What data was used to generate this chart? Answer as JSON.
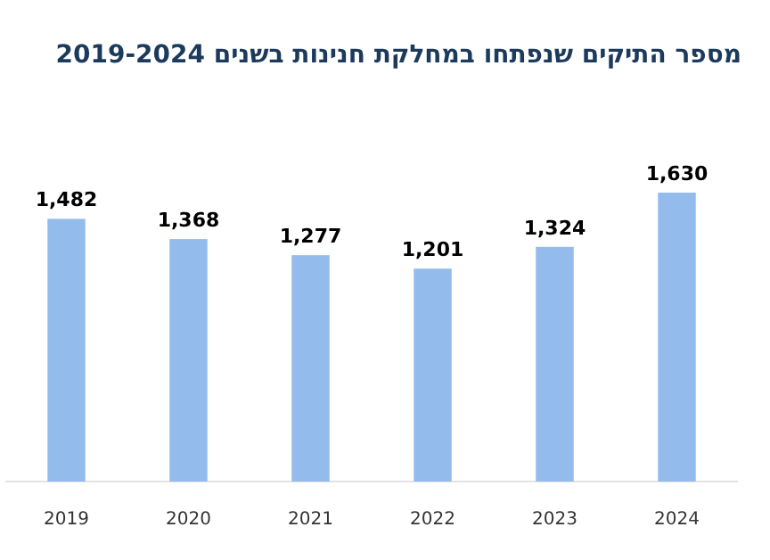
{
  "chart_data": {
    "type": "bar",
    "title": "מספר התיקים שנפתחו במחלקת חנינות בשנים 2019-2024",
    "categories": [
      "2019",
      "2020",
      "2021",
      "2022",
      "2023",
      "2024"
    ],
    "values": [
      1482,
      1368,
      1277,
      1201,
      1324,
      1630
    ],
    "color": "#93bbeb",
    "value_labels": [
      "1,482",
      "1,368",
      "1,277",
      "1,201",
      "1,324",
      "1,630"
    ]
  }
}
